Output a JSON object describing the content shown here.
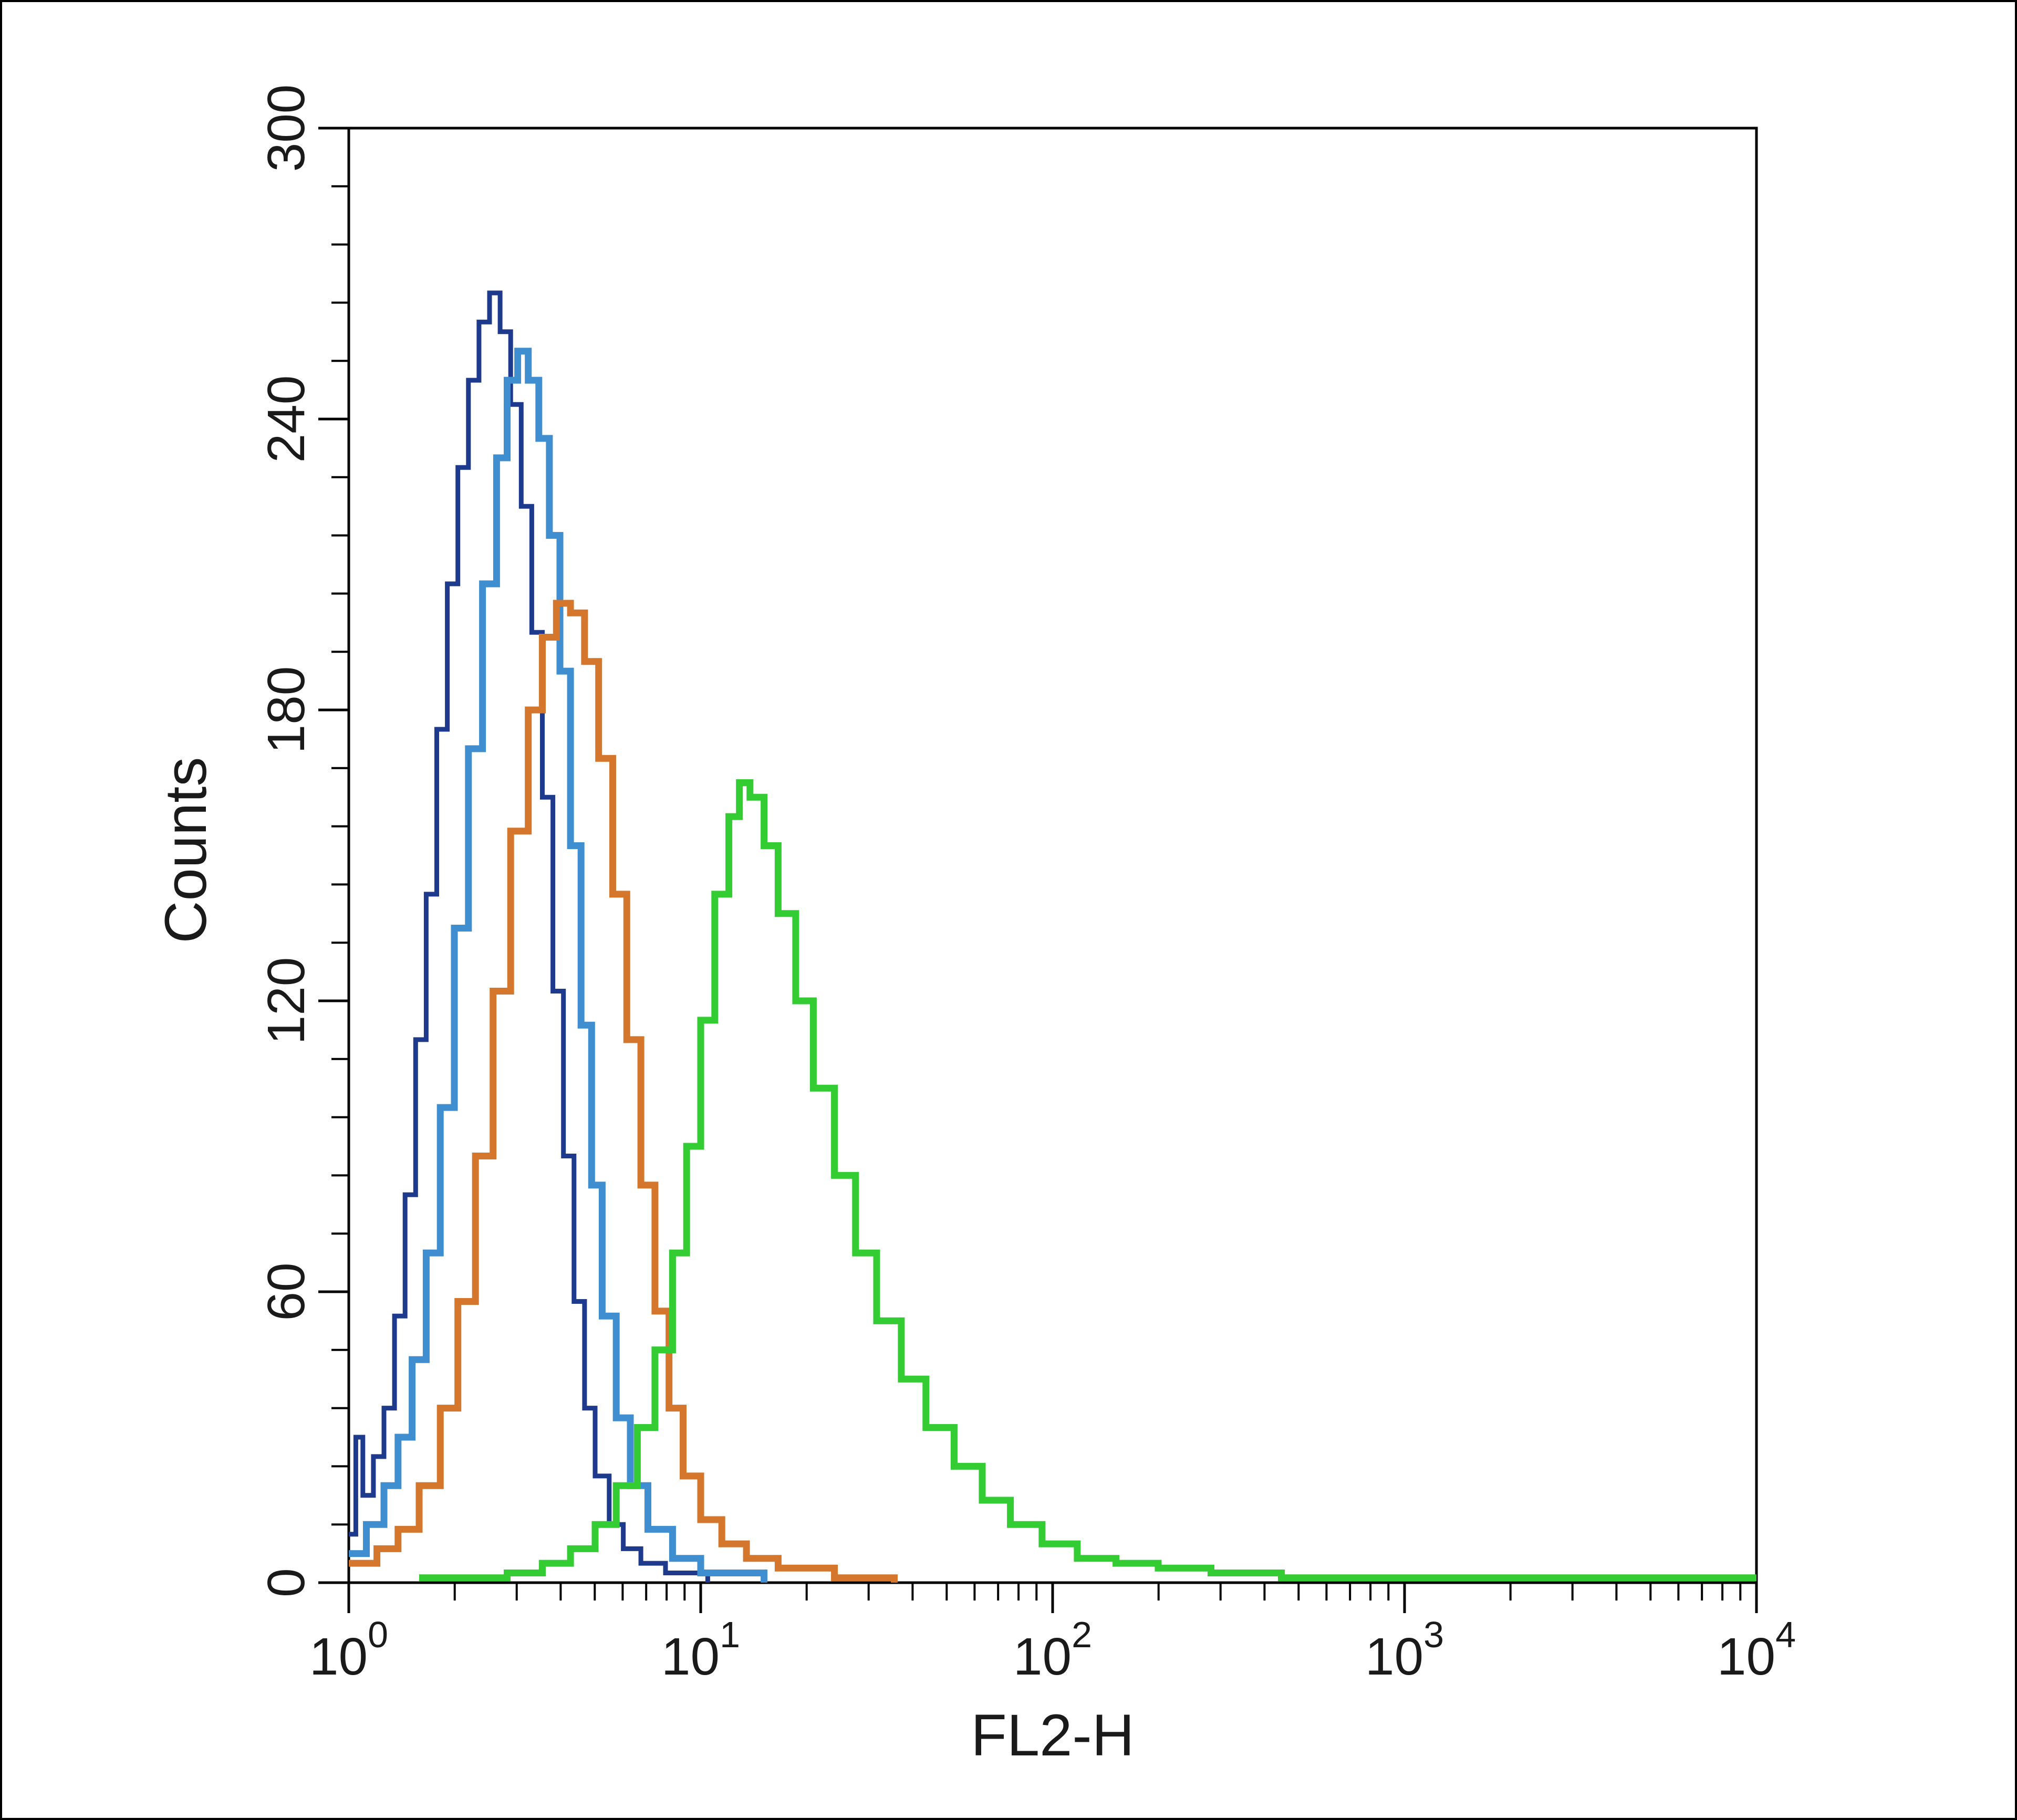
{
  "figure": {
    "background": "#ffffff",
    "border_color": "#000000",
    "axis_color": "#000000",
    "text_color": "#1a1a1a"
  },
  "chart_data": {
    "type": "line",
    "subtype": "flow-cytometry-histogram-overlay",
    "title": "",
    "x_axis": {
      "label": "FL2-H",
      "scale": "log10",
      "min_exp": 0,
      "max_exp": 4,
      "tick_base": "10",
      "tick_exponents": [
        0,
        1,
        2,
        3,
        4
      ]
    },
    "y_axis": {
      "label": "Counts",
      "min": 0,
      "max": 300,
      "ticks": [
        0,
        60,
        120,
        180,
        240,
        300
      ],
      "minor_step": 12
    },
    "series": [
      {
        "name": "dark-blue-histogram",
        "color": "#1e3a8c",
        "stroke_width": 9,
        "points": [
          [
            0,
            10
          ],
          [
            0.02,
            30
          ],
          [
            0.04,
            18
          ],
          [
            0.07,
            26
          ],
          [
            0.1,
            36
          ],
          [
            0.13,
            55
          ],
          [
            0.16,
            80
          ],
          [
            0.19,
            112
          ],
          [
            0.22,
            142
          ],
          [
            0.25,
            176
          ],
          [
            0.28,
            206
          ],
          [
            0.31,
            230
          ],
          [
            0.34,
            248
          ],
          [
            0.37,
            260
          ],
          [
            0.4,
            266
          ],
          [
            0.43,
            258
          ],
          [
            0.46,
            243
          ],
          [
            0.49,
            222
          ],
          [
            0.52,
            196
          ],
          [
            0.55,
            162
          ],
          [
            0.58,
            122
          ],
          [
            0.61,
            88
          ],
          [
            0.64,
            58
          ],
          [
            0.67,
            36
          ],
          [
            0.7,
            22
          ],
          [
            0.74,
            12
          ],
          [
            0.78,
            7
          ],
          [
            0.83,
            4
          ],
          [
            0.9,
            2
          ],
          [
            1.02,
            0
          ]
        ]
      },
      {
        "name": "light-blue-histogram",
        "color": "#3e8ed0",
        "stroke_width": 13,
        "points": [
          [
            0,
            6
          ],
          [
            0.05,
            12
          ],
          [
            0.1,
            20
          ],
          [
            0.14,
            30
          ],
          [
            0.18,
            46
          ],
          [
            0.22,
            68
          ],
          [
            0.26,
            98
          ],
          [
            0.3,
            135
          ],
          [
            0.34,
            172
          ],
          [
            0.38,
            206
          ],
          [
            0.42,
            232
          ],
          [
            0.45,
            248
          ],
          [
            0.48,
            254
          ],
          [
            0.51,
            248
          ],
          [
            0.54,
            236
          ],
          [
            0.57,
            216
          ],
          [
            0.6,
            188
          ],
          [
            0.63,
            152
          ],
          [
            0.66,
            115
          ],
          [
            0.69,
            82
          ],
          [
            0.72,
            55
          ],
          [
            0.76,
            34
          ],
          [
            0.8,
            20
          ],
          [
            0.85,
            11
          ],
          [
            0.92,
            5
          ],
          [
            1.0,
            2
          ],
          [
            1.18,
            0
          ]
        ]
      },
      {
        "name": "orange-histogram",
        "color": "#d4762b",
        "stroke_width": 13,
        "points": [
          [
            0,
            4
          ],
          [
            0.08,
            7
          ],
          [
            0.14,
            11
          ],
          [
            0.2,
            20
          ],
          [
            0.26,
            36
          ],
          [
            0.31,
            58
          ],
          [
            0.36,
            88
          ],
          [
            0.41,
            122
          ],
          [
            0.46,
            155
          ],
          [
            0.51,
            180
          ],
          [
            0.55,
            195
          ],
          [
            0.59,
            202
          ],
          [
            0.63,
            200
          ],
          [
            0.67,
            190
          ],
          [
            0.71,
            170
          ],
          [
            0.75,
            142
          ],
          [
            0.79,
            112
          ],
          [
            0.83,
            82
          ],
          [
            0.87,
            56
          ],
          [
            0.91,
            36
          ],
          [
            0.95,
            22
          ],
          [
            1.0,
            13
          ],
          [
            1.06,
            8
          ],
          [
            1.13,
            5
          ],
          [
            1.22,
            3
          ],
          [
            1.38,
            1
          ],
          [
            1.55,
            0
          ]
        ]
      },
      {
        "name": "green-histogram",
        "color": "#33cc33",
        "stroke_width": 13,
        "points": [
          [
            0.2,
            1
          ],
          [
            0.45,
            2
          ],
          [
            0.55,
            4
          ],
          [
            0.63,
            7
          ],
          [
            0.7,
            12
          ],
          [
            0.76,
            20
          ],
          [
            0.82,
            32
          ],
          [
            0.87,
            48
          ],
          [
            0.92,
            68
          ],
          [
            0.96,
            90
          ],
          [
            1.0,
            116
          ],
          [
            1.04,
            142
          ],
          [
            1.08,
            158
          ],
          [
            1.11,
            165
          ],
          [
            1.14,
            162
          ],
          [
            1.18,
            152
          ],
          [
            1.22,
            138
          ],
          [
            1.27,
            120
          ],
          [
            1.32,
            102
          ],
          [
            1.38,
            84
          ],
          [
            1.44,
            68
          ],
          [
            1.5,
            54
          ],
          [
            1.57,
            42
          ],
          [
            1.64,
            32
          ],
          [
            1.72,
            24
          ],
          [
            1.8,
            17
          ],
          [
            1.88,
            12
          ],
          [
            1.97,
            8
          ],
          [
            2.07,
            5
          ],
          [
            2.18,
            4
          ],
          [
            2.3,
            3
          ],
          [
            2.45,
            2
          ],
          [
            2.65,
            1
          ],
          [
            3.0,
            1
          ],
          [
            3.5,
            1
          ],
          [
            4.0,
            1
          ]
        ]
      }
    ]
  }
}
